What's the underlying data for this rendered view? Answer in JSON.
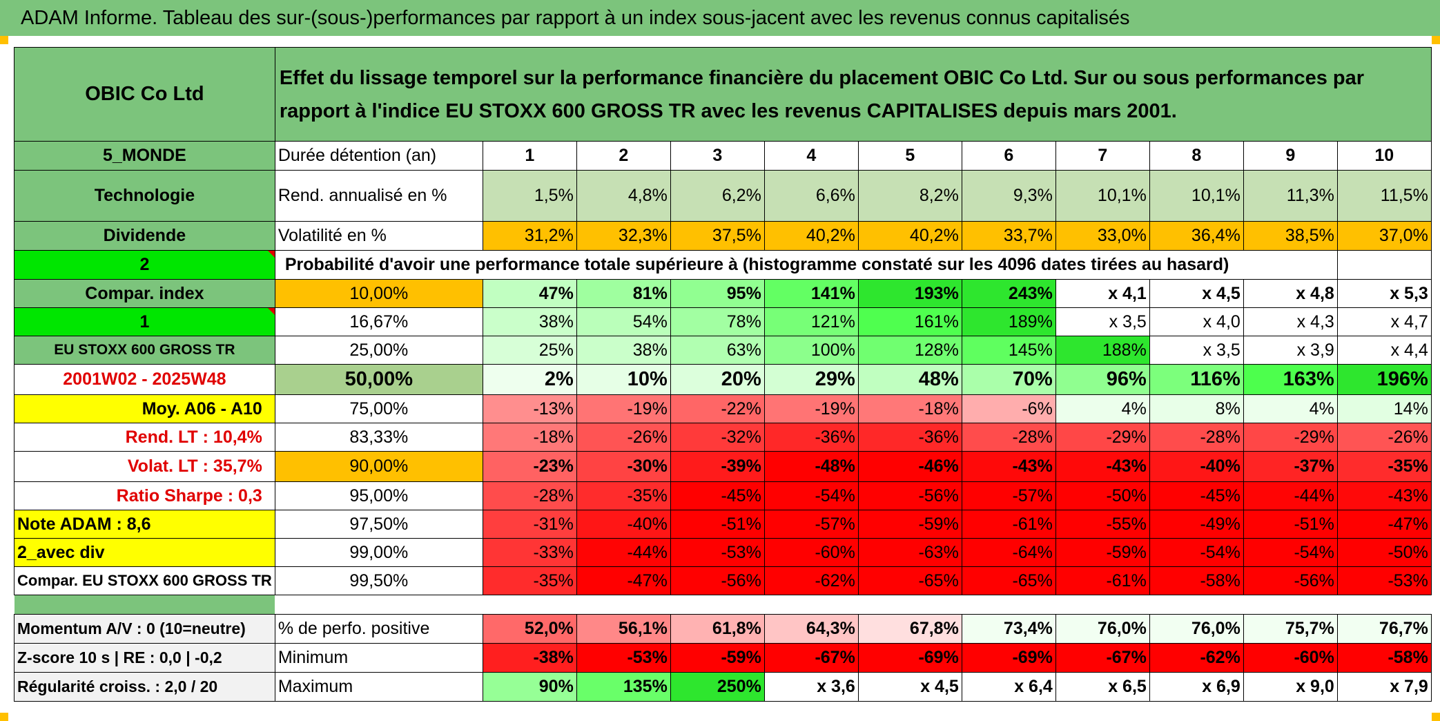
{
  "title": "ADAM Informe. Tableau des sur-(sous-)performances par rapport à un index sous-jacent avec les revenus connus capitalisés",
  "company": "OBIC Co Ltd",
  "description": "Effet du lissage temporel sur la performance financière du placement OBIC Co Ltd. Sur ou sous performances par rapport à l'indice EU STOXX 600 GROSS TR avec les revenus CAPITALISES depuis mars 2001.",
  "left_labels": {
    "region": "5_MONDE",
    "sector": "Technologie",
    "div": "Dividende",
    "num2": "2",
    "compar_index": "Compar. index",
    "num1": "1",
    "index_name": "EU STOXX 600 GROSS TR",
    "period": "2001W02 - 2025W48",
    "moy": "Moy. A06 - A10",
    "rend_lt": "Rend. LT :   10,4%",
    "volat_lt": "Volat. LT :   35,7%",
    "sharpe": "Ratio Sharpe :    0,3",
    "note": "Note ADAM : 8,6",
    "avec_div": "2_avec div",
    "compar_full": "Compar. EU STOXX 600 GROSS TR",
    "momentum": "Momentum A/V : 0 (10=neutre)",
    "zscore": "Z-score 10 s | RE : 0,0 | -0,2",
    "regularite": "Régularité croiss. : 2,0 / 20"
  },
  "header_row": {
    "label": "Durée détention (an)",
    "years": [
      "1",
      "2",
      "3",
      "4",
      "5",
      "6",
      "7",
      "8",
      "9",
      "10"
    ]
  },
  "rend_row": {
    "label": "Rend. annualisé en %",
    "values": [
      "1,5%",
      "4,8%",
      "6,2%",
      "6,6%",
      "8,2%",
      "9,3%",
      "10,1%",
      "10,1%",
      "11,3%",
      "11,5%"
    ]
  },
  "vol_row": {
    "label": "Volatilité en %",
    "values": [
      "31,2%",
      "32,3%",
      "37,5%",
      "40,2%",
      "40,2%",
      "33,7%",
      "33,0%",
      "36,4%",
      "38,5%",
      "37,0%"
    ]
  },
  "prob_title": "Probabilité d'avoir une performance totale supérieure à (histogramme constaté sur les 4096 dates tirées au hasard)",
  "prob_rows": [
    {
      "pct": "10,00%",
      "values": [
        "47%",
        "81%",
        "95%",
        "141%",
        "193%",
        "243%",
        "x 4,1",
        "x 4,5",
        "x 4,8",
        "x 5,3"
      ]
    },
    {
      "pct": "16,67%",
      "values": [
        "38%",
        "54%",
        "78%",
        "121%",
        "161%",
        "189%",
        "x 3,5",
        "x 4,0",
        "x 4,3",
        "x 4,7"
      ]
    },
    {
      "pct": "25,00%",
      "values": [
        "25%",
        "38%",
        "63%",
        "100%",
        "128%",
        "145%",
        "188%",
        "x 3,5",
        "x 3,9",
        "x 4,4"
      ]
    },
    {
      "pct": "50,00%",
      "values": [
        "2%",
        "10%",
        "20%",
        "29%",
        "48%",
        "70%",
        "96%",
        "116%",
        "163%",
        "196%"
      ]
    },
    {
      "pct": "75,00%",
      "values": [
        "-13%",
        "-19%",
        "-22%",
        "-19%",
        "-18%",
        "-6%",
        "4%",
        "8%",
        "4%",
        "14%"
      ]
    },
    {
      "pct": "83,33%",
      "values": [
        "-18%",
        "-26%",
        "-32%",
        "-36%",
        "-36%",
        "-28%",
        "-29%",
        "-28%",
        "-29%",
        "-26%"
      ]
    },
    {
      "pct": "90,00%",
      "values": [
        "-23%",
        "-30%",
        "-39%",
        "-48%",
        "-46%",
        "-43%",
        "-43%",
        "-40%",
        "-37%",
        "-35%"
      ]
    },
    {
      "pct": "95,00%",
      "values": [
        "-28%",
        "-35%",
        "-45%",
        "-54%",
        "-56%",
        "-57%",
        "-50%",
        "-45%",
        "-44%",
        "-43%"
      ]
    },
    {
      "pct": "97,50%",
      "values": [
        "-31%",
        "-40%",
        "-51%",
        "-57%",
        "-59%",
        "-61%",
        "-55%",
        "-49%",
        "-51%",
        "-47%"
      ]
    },
    {
      "pct": "99,00%",
      "values": [
        "-33%",
        "-44%",
        "-53%",
        "-60%",
        "-63%",
        "-64%",
        "-59%",
        "-54%",
        "-54%",
        "-50%"
      ]
    },
    {
      "pct": "99,50%",
      "values": [
        "-35%",
        "-47%",
        "-56%",
        "-62%",
        "-65%",
        "-65%",
        "-61%",
        "-58%",
        "-56%",
        "-53%"
      ]
    }
  ],
  "stats_rows": [
    {
      "label": "% de perfo. positive",
      "values": [
        "52,0%",
        "56,1%",
        "61,8%",
        "64,3%",
        "67,8%",
        "73,4%",
        "76,0%",
        "76,0%",
        "75,7%",
        "76,7%"
      ]
    },
    {
      "label": "Minimum",
      "values": [
        "-38%",
        "-53%",
        "-59%",
        "-67%",
        "-69%",
        "-69%",
        "-67%",
        "-62%",
        "-60%",
        "-58%"
      ]
    },
    {
      "label": "Maximum",
      "values": [
        "90%",
        "135%",
        "250%",
        "x 3,6",
        "x 4,5",
        "x 6,4",
        "x 6,5",
        "x 6,9",
        "x 9,0",
        "x 7,9"
      ]
    }
  ],
  "colors": {
    "header_green": "#7cc47c",
    "bright_green": "#00e600",
    "yellow": "#ffff00",
    "orange": "#ffc000",
    "red": "#ff0000",
    "label_red": "#e00000"
  }
}
